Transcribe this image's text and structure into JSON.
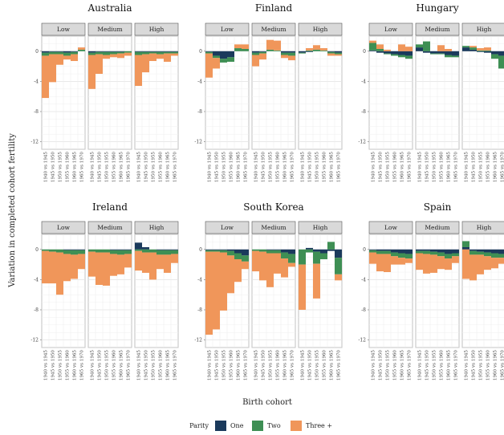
{
  "chart_data": {
    "type": "bar",
    "stacked": true,
    "ylabel": "Variation in completed cohort fertility",
    "xlabel": "Birth cohort",
    "ylim": [
      -13,
      2
    ],
    "yticks": [
      0,
      -4,
      -8,
      -12
    ],
    "grid": true,
    "categories": [
      "1940 vs 1945",
      "1945 vs 1950",
      "1950 vs 1955",
      "1955 vs 1960",
      "1960 vs 1965",
      "1965 vs 1970"
    ],
    "levels": [
      "Low",
      "Medium",
      "High"
    ],
    "legend": {
      "title": "Parity",
      "position": "bottom",
      "items": [
        {
          "label": "One",
          "color": "#1b3a5c"
        },
        {
          "label": "Two",
          "color": "#3e8f54"
        },
        {
          "label": "Three +",
          "color": "#f0965a"
        }
      ]
    },
    "panels": [
      {
        "country": "Australia",
        "facets": [
          {
            "one": [
              -0.2,
              -0.1,
              -0.1,
              -0.2,
              -0.1,
              0.0
            ],
            "two": [
              -0.4,
              -0.3,
              -0.3,
              -0.4,
              -0.3,
              0.2
            ],
            "three": [
              -5.6,
              -3.7,
              -1.4,
              -0.5,
              -0.9,
              0.3
            ]
          },
          {
            "one": [
              -0.2,
              -0.1,
              -0.1,
              -0.1,
              -0.1,
              0.0
            ],
            "two": [
              -0.3,
              -0.3,
              -0.4,
              -0.3,
              -0.2,
              -0.2
            ],
            "three": [
              -4.5,
              -2.6,
              -0.5,
              -0.4,
              -0.6,
              -0.4
            ]
          },
          {
            "one": [
              -0.1,
              -0.1,
              -0.1,
              -0.1,
              -0.1,
              -0.1
            ],
            "two": [
              -0.4,
              -0.3,
              -0.2,
              -0.3,
              -0.2,
              -0.2
            ],
            "three": [
              -4.1,
              -2.4,
              -1.0,
              -0.6,
              -1.1,
              -0.3
            ]
          }
        ]
      },
      {
        "country": "Finland",
        "facets": [
          {
            "one": [
              -0.1,
              -0.6,
              -1.0,
              -0.8,
              0.0,
              0.0
            ],
            "two": [
              -0.2,
              -0.3,
              -0.5,
              -0.6,
              0.4,
              0.3
            ],
            "three": [
              -3.2,
              -1.4,
              0.0,
              0.0,
              0.5,
              0.6
            ]
          },
          {
            "one": [
              -0.2,
              -0.1,
              0.0,
              0.0,
              -0.2,
              -0.2
            ],
            "two": [
              -0.3,
              -0.2,
              0.2,
              0.1,
              -0.3,
              -0.4
            ],
            "three": [
              -1.5,
              -0.8,
              1.3,
              1.3,
              -0.4,
              -0.6
            ]
          },
          {
            "one": [
              -0.2,
              -0.1,
              0.0,
              0.0,
              -0.1,
              -0.2
            ],
            "two": [
              -0.1,
              0.1,
              0.2,
              0.1,
              -0.2,
              -0.2
            ],
            "three": [
              0.0,
              0.3,
              0.6,
              0.3,
              -0.3,
              -0.2
            ]
          }
        ]
      },
      {
        "country": "Hungary",
        "facets": [
          {
            "one": [
              0.1,
              -0.2,
              -0.3,
              -0.4,
              -0.5,
              -0.6
            ],
            "two": [
              1.0,
              0.3,
              -0.1,
              -0.2,
              -0.3,
              -0.4
            ],
            "three": [
              0.3,
              0.6,
              0.2,
              0.0,
              0.9,
              0.6
            ]
          },
          {
            "one": [
              0.5,
              -0.2,
              -0.3,
              -0.3,
              -0.5,
              -0.6
            ],
            "two": [
              0.4,
              1.3,
              -0.1,
              -0.1,
              -0.3,
              -0.2
            ],
            "three": [
              0.0,
              0.0,
              0.0,
              0.8,
              0.3,
              0.0
            ]
          },
          {
            "one": [
              0.5,
              0.2,
              -0.1,
              -0.2,
              -0.4,
              -0.6
            ],
            "two": [
              0.2,
              0.3,
              0.1,
              0.1,
              -0.6,
              -1.7
            ],
            "three": [
              0.0,
              0.2,
              0.3,
              0.4,
              0.0,
              0.0
            ]
          }
        ]
      },
      {
        "country": "Ireland",
        "facets": [
          {
            "one": [
              0.0,
              0.0,
              0.0,
              -0.1,
              -0.1,
              -0.1
            ],
            "two": [
              -0.2,
              -0.3,
              -0.4,
              -0.5,
              -0.6,
              -0.5
            ],
            "three": [
              -4.3,
              -4.2,
              -5.6,
              -3.6,
              -3.2,
              -2.0
            ]
          },
          {
            "one": [
              0.0,
              0.0,
              0.0,
              -0.1,
              -0.1,
              -0.1
            ],
            "two": [
              -0.3,
              -0.4,
              -0.4,
              -0.5,
              -0.6,
              -0.5
            ],
            "three": [
              -3.3,
              -4.3,
              -4.4,
              -2.9,
              -2.6,
              -1.8
            ]
          },
          {
            "one": [
              0.9,
              0.3,
              0.0,
              -0.1,
              -0.1,
              -0.1
            ],
            "two": [
              -0.2,
              -0.4,
              -0.4,
              -0.6,
              -0.6,
              -0.5
            ],
            "three": [
              -2.6,
              -2.7,
              -3.6,
              -1.9,
              -2.4,
              -1.2
            ]
          }
        ]
      },
      {
        "country": "South Korea",
        "facets": [
          {
            "one": [
              -0.1,
              -0.1,
              -0.1,
              -0.2,
              -0.5,
              -0.8
            ],
            "two": [
              -0.2,
              -0.2,
              -0.3,
              -0.6,
              -0.8,
              -0.8
            ],
            "three": [
              -11.0,
              -10.3,
              -7.7,
              -5.0,
              -3.0,
              -1.0
            ]
          },
          {
            "one": [
              0.0,
              0.0,
              -0.1,
              -0.1,
              -0.4,
              -0.6
            ],
            "two": [
              -0.2,
              -0.3,
              -0.4,
              -0.4,
              -0.8,
              -1.2
            ],
            "three": [
              -2.7,
              -3.8,
              -4.5,
              -2.7,
              -2.5,
              -0.5
            ]
          },
          {
            "one": [
              0.0,
              0.2,
              -0.3,
              -0.5,
              -0.2,
              -1.1
            ],
            "two": [
              -2.0,
              -0.4,
              -1.6,
              -0.8,
              1.0,
              -2.2
            ],
            "three": [
              -6.0,
              0.0,
              -4.6,
              0.0,
              0.0,
              -0.8
            ]
          }
        ]
      },
      {
        "country": "Spain",
        "facets": [
          {
            "one": [
              -0.1,
              -0.2,
              -0.2,
              -0.4,
              -0.5,
              -0.6
            ],
            "two": [
              -0.3,
              -0.4,
              -0.4,
              -0.5,
              -0.6,
              -0.6
            ],
            "three": [
              -1.5,
              -2.3,
              -2.4,
              -1.1,
              -0.9,
              -0.6
            ]
          },
          {
            "one": [
              -0.2,
              -0.2,
              -0.3,
              -0.4,
              -0.6,
              -0.5
            ],
            "two": [
              -0.3,
              -0.4,
              -0.4,
              -0.5,
              -0.6,
              -0.4
            ],
            "three": [
              -2.2,
              -2.6,
              -2.4,
              -1.7,
              -1.5,
              -0.9
            ]
          },
          {
            "one": [
              0.3,
              -0.2,
              -0.3,
              -0.4,
              -0.5,
              -0.6
            ],
            "two": [
              0.8,
              -0.5,
              -0.4,
              -0.5,
              -0.6,
              -0.5
            ],
            "three": [
              -3.9,
              -3.4,
              -2.6,
              -1.8,
              -1.4,
              -0.8
            ]
          }
        ]
      }
    ]
  }
}
